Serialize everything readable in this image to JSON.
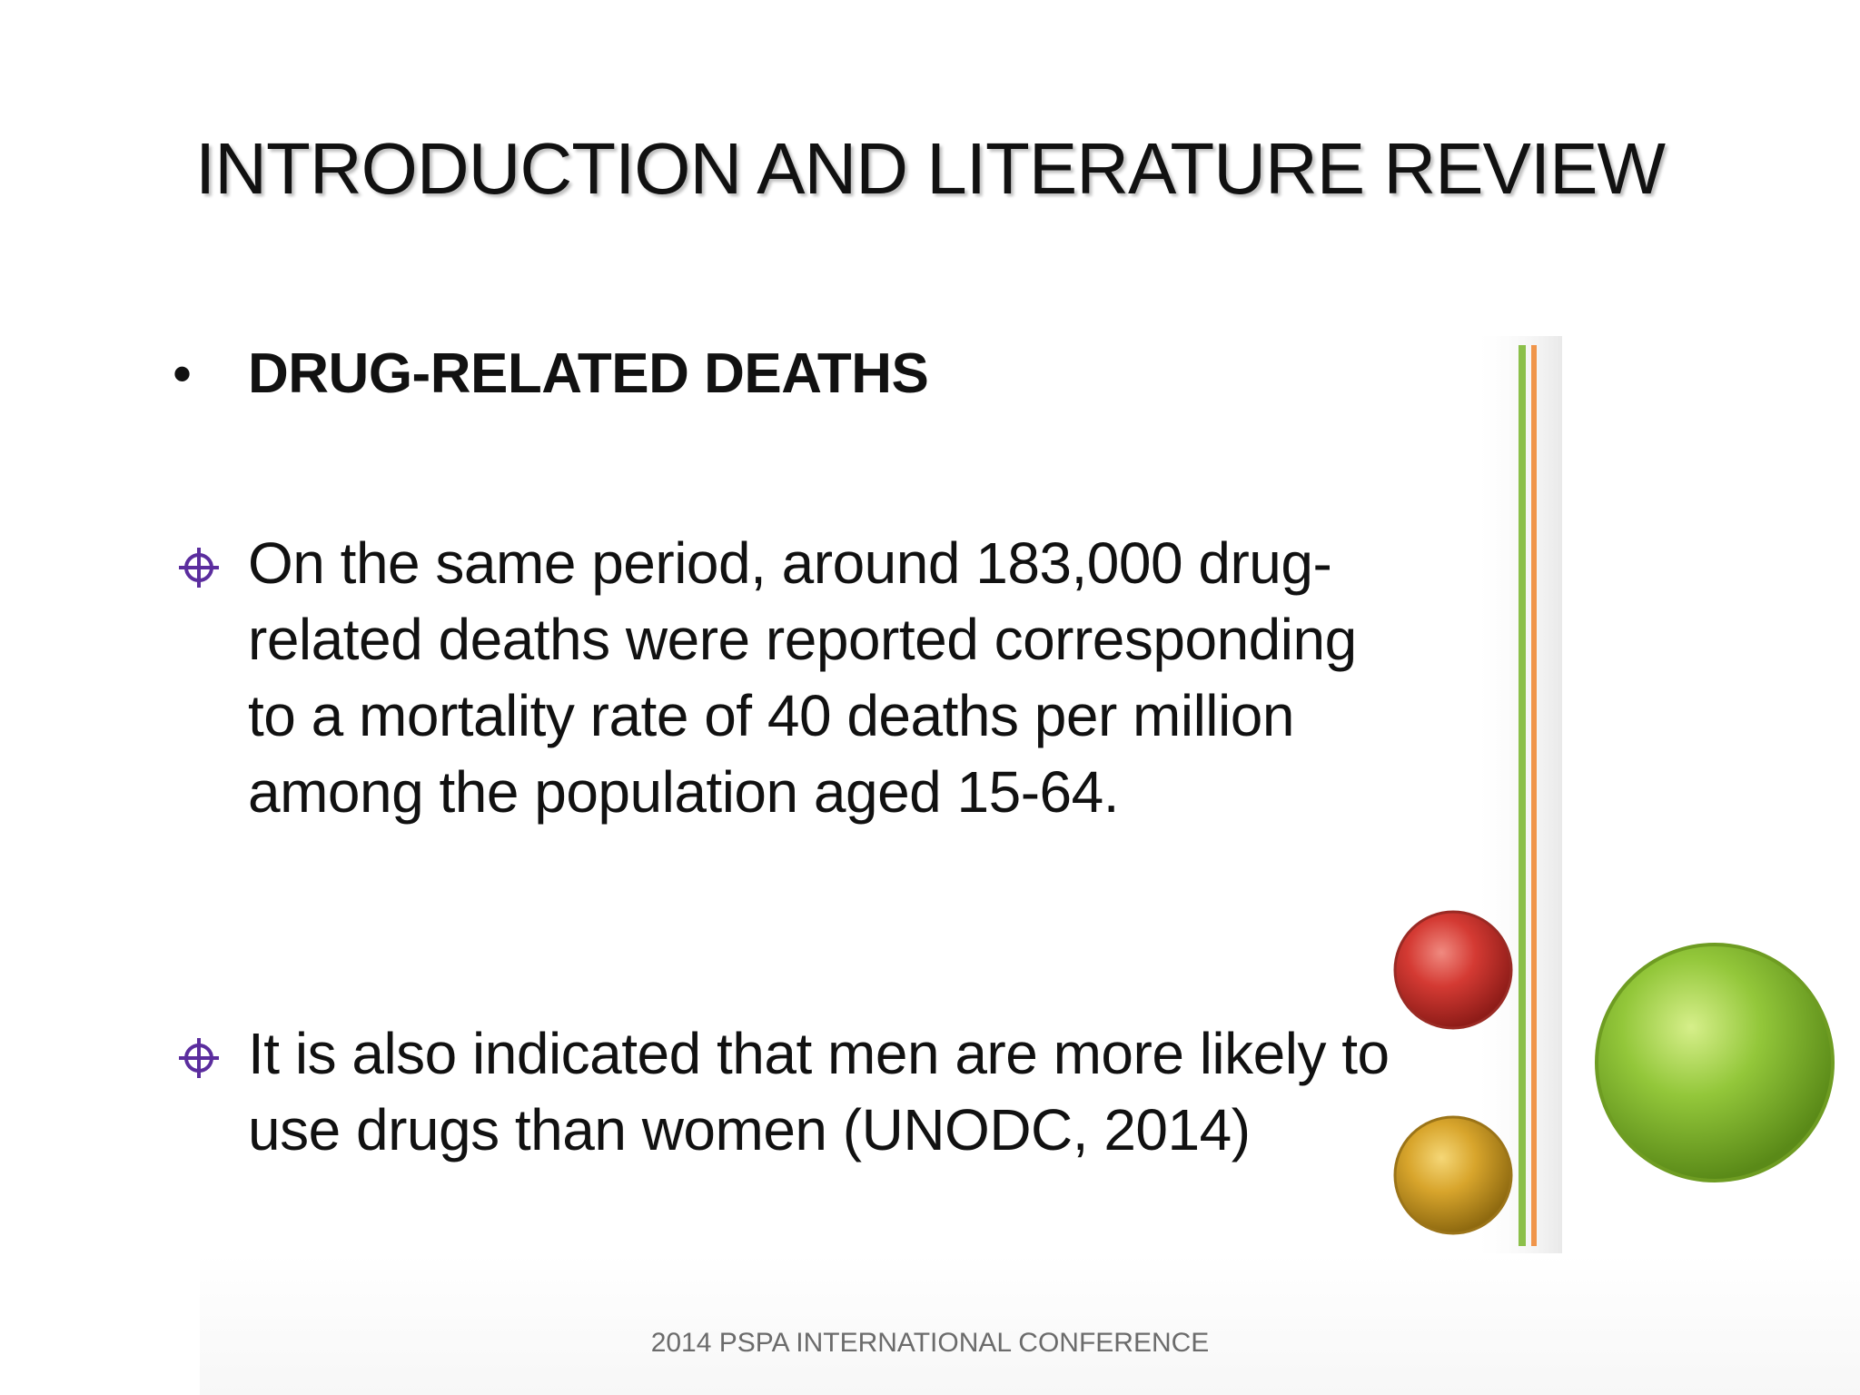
{
  "slide": {
    "title": "INTRODUCTION AND LITERATURE REVIEW",
    "heading": {
      "bullet": "•",
      "text": "DRUG-RELATED DEATHS"
    },
    "points": [
      {
        "icon": "crosshair-bullet-icon",
        "text": "On the same period, around 183,000 drug-related deaths were reported corresponding to a mortality rate of 40 deaths per million among the population aged 15-64."
      },
      {
        "icon": "crosshair-bullet-icon",
        "text": "It is also indicated that men are more likely to use drugs than women (UNODC, 2014)"
      }
    ],
    "footer": "2014 PSPA INTERNATIONAL CONFERENCE",
    "colors": {
      "bullet_icon": "#5b2d9e",
      "line_green": "#8cc04a",
      "line_orange": "#f0954a",
      "circle_red": "#c8332e",
      "circle_gold": "#d3a12a",
      "circle_green": "#8cc034"
    }
  }
}
